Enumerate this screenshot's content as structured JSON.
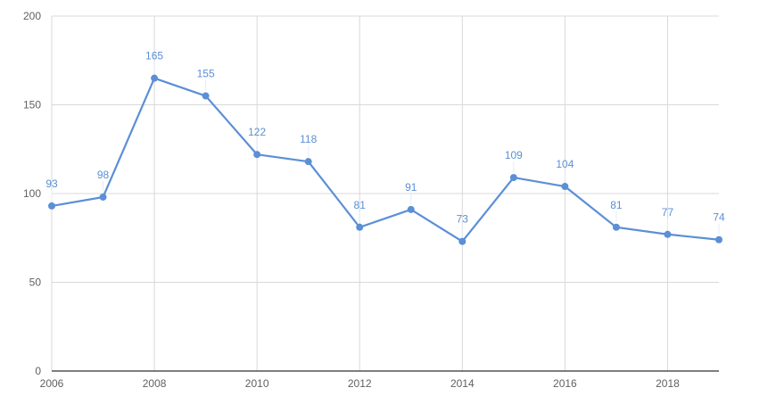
{
  "chart_data": {
    "type": "line",
    "title": "",
    "xlabel": "",
    "ylabel": "",
    "x": [
      2006,
      2007,
      2008,
      2009,
      2010,
      2011,
      2012,
      2013,
      2014,
      2015,
      2016,
      2017,
      2018,
      2019
    ],
    "series": [
      {
        "values": [
          93,
          98,
          165,
          155,
          122,
          118,
          81,
          91,
          73,
          109,
          104,
          81,
          77,
          74
        ],
        "labels": [
          "93",
          "98",
          "165",
          "155",
          "122",
          "118",
          "81",
          "91",
          "73",
          "109",
          "104",
          "81",
          "77",
          "74"
        ],
        "color": "#5b8fd6"
      }
    ],
    "x_tick_labels": [
      "2006",
      "2008",
      "2010",
      "2012",
      "2014",
      "2016",
      "2018"
    ],
    "x_ticks": [
      2006,
      2008,
      2010,
      2012,
      2014,
      2016,
      2018
    ],
    "y_tick_labels": [
      "0",
      "50",
      "100",
      "150",
      "200"
    ],
    "y_ticks": [
      0,
      50,
      100,
      150,
      200
    ],
    "xlim": [
      2006,
      2019
    ],
    "ylim": [
      0,
      200
    ],
    "grid": true,
    "legend": "none",
    "colors": {
      "line": "#5b8fd6",
      "grid": "#d9d9d9",
      "axis": "#333333",
      "tick_text": "#616161"
    }
  }
}
